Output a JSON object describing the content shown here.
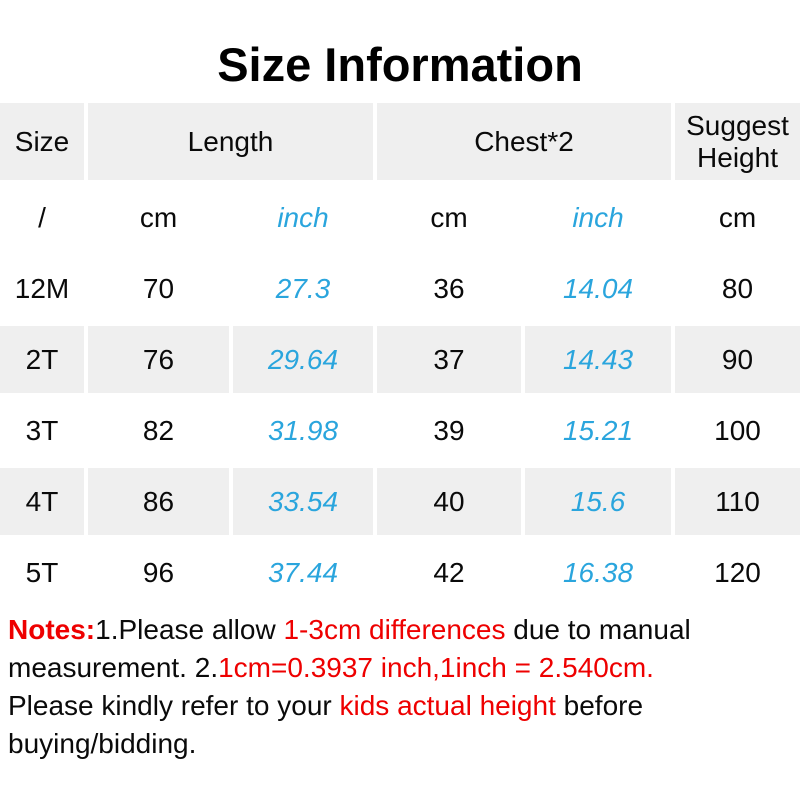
{
  "page": {
    "title": "Size Information"
  },
  "colors": {
    "header_bg": "#efefef",
    "stripe_bg": "#efefef",
    "inch_blue": "#2aa5dd",
    "note_red": "#ee0000",
    "text_black": "#0a0a0a"
  },
  "table": {
    "headers": {
      "size": "Size",
      "length": "Length",
      "chest": "Chest*2",
      "suggest_height": "Suggest Height"
    },
    "unit_row": {
      "size": "/",
      "length_cm": "cm",
      "length_inch": "inch",
      "chest_cm": "cm",
      "chest_inch": "inch",
      "height_cm": "cm"
    },
    "rows": [
      {
        "size": "12M",
        "length_cm": "70",
        "length_inch": "27.3",
        "chest_cm": "36",
        "chest_inch": "14.04",
        "height_cm": "80"
      },
      {
        "size": "2T",
        "length_cm": "76",
        "length_inch": "29.64",
        "chest_cm": "37",
        "chest_inch": "14.43",
        "height_cm": "90"
      },
      {
        "size": "3T",
        "length_cm": "82",
        "length_inch": "31.98",
        "chest_cm": "39",
        "chest_inch": "15.21",
        "height_cm": "100"
      },
      {
        "size": "4T",
        "length_cm": "86",
        "length_inch": "33.54",
        "chest_cm": "40",
        "chest_inch": "15.6",
        "height_cm": "110"
      },
      {
        "size": "5T",
        "length_cm": "96",
        "length_inch": "37.44",
        "chest_cm": "42",
        "chest_inch": "16.38",
        "height_cm": "120"
      }
    ]
  },
  "notes": {
    "segments": [
      {
        "text": "Notes:",
        "style": "red-bold"
      },
      {
        "text": "1.Please allow ",
        "style": "black"
      },
      {
        "text": "1-3cm differences",
        "style": "red"
      },
      {
        "text": " due to manual measurement. 2.",
        "style": "black"
      },
      {
        "text": "1cm=0.3937 inch,1inch = 2.540cm.",
        "style": "red"
      },
      {
        "br": true
      },
      {
        "text": "Please kindly refer to your ",
        "style": "black"
      },
      {
        "text": "kids actual height",
        "style": "red"
      },
      {
        "text": " before buying/bidding.",
        "style": "black"
      }
    ]
  },
  "chart_data": {
    "type": "table",
    "title": "Size Information",
    "columns": [
      "Size",
      "Length cm",
      "Length inch",
      "Chest*2 cm",
      "Chest*2 inch",
      "Suggest Height cm"
    ],
    "rows": [
      [
        "12M",
        70,
        27.3,
        36,
        14.04,
        80
      ],
      [
        "2T",
        76,
        29.64,
        37,
        14.43,
        90
      ],
      [
        "3T",
        82,
        31.98,
        39,
        15.21,
        100
      ],
      [
        "4T",
        86,
        33.54,
        40,
        15.6,
        110
      ],
      [
        "5T",
        96,
        37.44,
        42,
        16.38,
        120
      ]
    ]
  }
}
